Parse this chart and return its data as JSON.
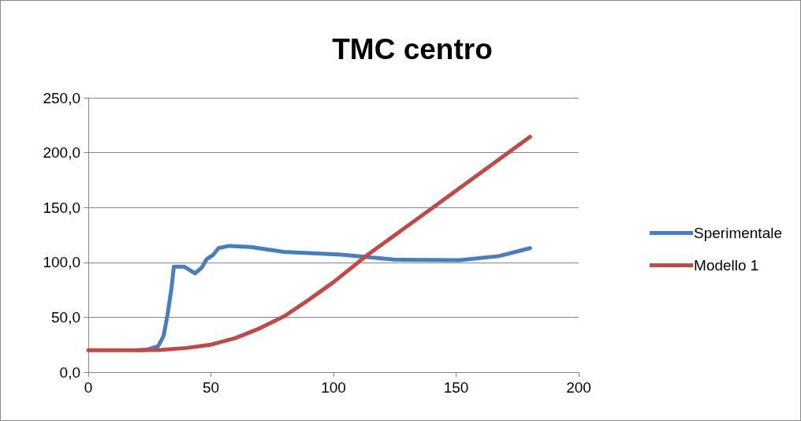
{
  "chart_data": {
    "type": "line",
    "title": "TMC centro",
    "series": [
      {
        "name": "Sperimentale",
        "color": "#4a7ebb",
        "x": [
          20,
          24,
          28.5,
          30.7,
          32.3,
          33.9,
          34.9,
          39.2,
          43.5,
          46.2,
          48.3,
          51,
          53.1,
          57.4,
          66,
          79.8,
          103.3,
          124.7,
          151.4,
          167.4,
          180.2
        ],
        "values": [
          20,
          20.5,
          23.6,
          33,
          52,
          76,
          96,
          96,
          90,
          95,
          103,
          107,
          113,
          115,
          114,
          109.5,
          107,
          102.5,
          102,
          105.7,
          113
        ]
      },
      {
        "name": "Modello 1",
        "color": "#be4b48",
        "x": [
          0,
          10,
          20,
          30,
          40,
          50,
          60,
          70,
          80,
          90,
          100,
          114,
          141.8,
          180.2
        ],
        "values": [
          20,
          20,
          20,
          20.3,
          22,
          25,
          31,
          40,
          51,
          66,
          82,
          107,
          152,
          214.5
        ]
      }
    ],
    "xlim": [
      0,
      200
    ],
    "xticks": [
      0,
      50,
      100,
      150,
      200
    ],
    "ylim": [
      0,
      250
    ],
    "yticks": [
      {
        "value": 0,
        "label": "0,0"
      },
      {
        "value": 50,
        "label": "50,0"
      },
      {
        "value": 100,
        "label": "100,0"
      },
      {
        "value": 150,
        "label": "150,0"
      },
      {
        "value": 200,
        "label": "200,0"
      },
      {
        "value": 250,
        "label": "250,0"
      }
    ],
    "grid": "y",
    "legend": "right",
    "marker": "none",
    "line_style": "solid"
  }
}
